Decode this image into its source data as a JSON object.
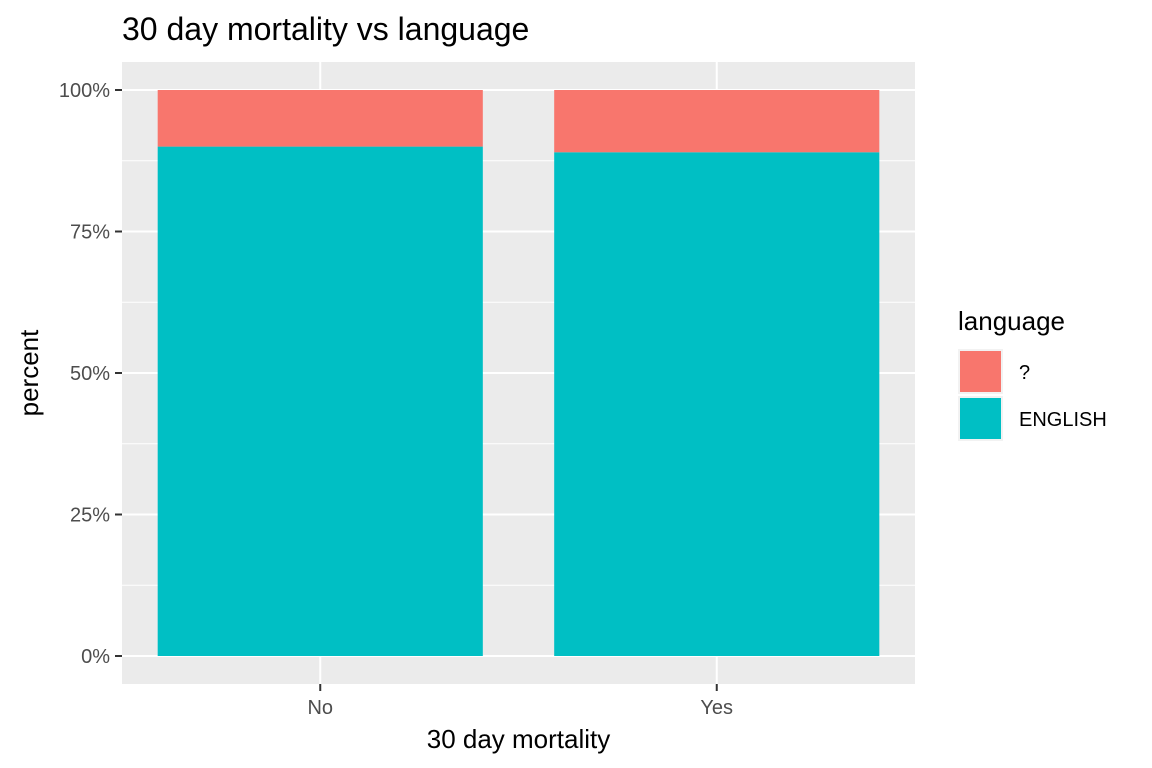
{
  "chart_data": {
    "type": "bar",
    "stacked": true,
    "normalized": true,
    "title": "30 day mortality vs language",
    "xlabel": "30 day mortality",
    "ylabel": "percent",
    "categories": [
      "No",
      "Yes"
    ],
    "series": [
      {
        "name": "?",
        "values": [
          0.1,
          0.11
        ],
        "color": "#F8766D"
      },
      {
        "name": "ENGLISH",
        "values": [
          0.9,
          0.89
        ],
        "color": "#00BFC4"
      }
    ],
    "ylim": [
      0,
      1
    ],
    "yticks": [
      0,
      0.25,
      0.5,
      0.75,
      1.0
    ],
    "ytick_labels": [
      "0%",
      "25%",
      "50%",
      "75%",
      "100%"
    ],
    "grid": true,
    "panel_background": "#EBEBEB",
    "legend": {
      "title": "language",
      "position": "right"
    }
  }
}
